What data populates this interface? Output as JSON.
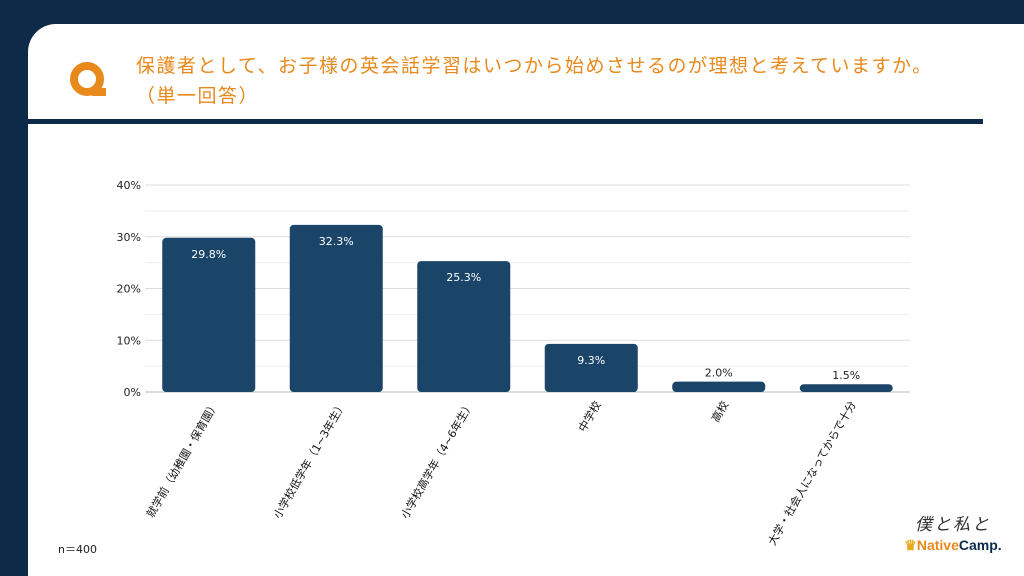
{
  "question": {
    "icon": "Q",
    "text": "保護者として、お子様の英会話学習はいつから始めさせるのが理想と考えていますか。",
    "subtext": "（単一回答）"
  },
  "sample_size": "n＝400",
  "logo": {
    "handwritten": "僕と私と",
    "crown": "♛",
    "brand_part1": "Native",
    "brand_part2": "Camp."
  },
  "colors": {
    "background": "#0d2a48",
    "accent": "#e8891c",
    "bar": "#1a4468"
  },
  "chart_data": {
    "type": "bar",
    "categories": [
      "就学前（幼稚園・保育園）",
      "小学校低学年（1~3年生）",
      "小学校高学年（4~6年生）",
      "中学校",
      "高校",
      "大学・社会人になってからで十分"
    ],
    "values": [
      29.8,
      32.3,
      25.3,
      9.3,
      2.0,
      1.5
    ],
    "data_labels": [
      "29.8%",
      "32.3%",
      "25.3%",
      "9.3%",
      "2.0%",
      "1.5%"
    ],
    "yticks": [
      "0%",
      "10%",
      "20%",
      "30%",
      "40%"
    ],
    "ylim": [
      0,
      40
    ],
    "grid": true,
    "legend": "none"
  }
}
